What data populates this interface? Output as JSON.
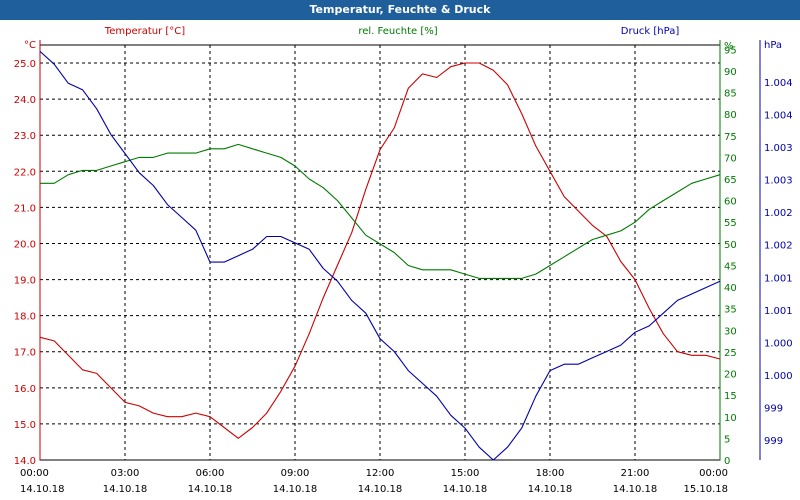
{
  "window": {
    "title": "Temperatur, Feuchte & Druck"
  },
  "colors": {
    "temperature": "#cc0000",
    "humidity": "#007a00",
    "pressure": "#0000aa",
    "grid": "#000000",
    "titlebar": "#1e5f9c"
  },
  "chart_data": {
    "type": "line",
    "title": "Temperatur, Feuchte & Druck",
    "grid": true,
    "x_ticks": [
      {
        "time": "00:00",
        "date": "14.10.18"
      },
      {
        "time": "03:00",
        "date": "14.10.18"
      },
      {
        "time": "06:00",
        "date": "14.10.18"
      },
      {
        "time": "09:00",
        "date": "14.10.18"
      },
      {
        "time": "12:00",
        "date": "14.10.18"
      },
      {
        "time": "15:00",
        "date": "14.10.18"
      },
      {
        "time": "18:00",
        "date": "14.10.18"
      },
      {
        "time": "21:00",
        "date": "14.10.18"
      },
      {
        "time": "00:00",
        "date": "15.10.18"
      }
    ],
    "axes": {
      "temperature": {
        "label": "Temperatur [°C]",
        "unit": "°C",
        "range": [
          14.0,
          25.5
        ],
        "ticks": [
          "14.0",
          "15.0",
          "16.0",
          "17.0",
          "18.0",
          "19.0",
          "20.0",
          "21.0",
          "22.0",
          "23.0",
          "24.0",
          "25.0"
        ]
      },
      "humidity": {
        "label": "rel. Feuchte [%]",
        "unit": "%",
        "range": [
          0,
          96
        ],
        "ticks": [
          "0",
          "5",
          "10",
          "15",
          "20",
          "25",
          "30",
          "35",
          "40",
          "45",
          "50",
          "55",
          "60",
          "65",
          "70",
          "75",
          "80",
          "85",
          "90",
          "95",
          "%"
        ]
      },
      "pressure": {
        "label": "Druck [hPa]",
        "unit": "hPa",
        "range": [
          998.5,
          1005.0
        ],
        "tick_labels": [
          "999",
          "999",
          "1.000",
          "1.000",
          "1.001",
          "1.001",
          "1.002",
          "1.002",
          "1.003",
          "1.003",
          "1.004",
          "1.004"
        ]
      }
    },
    "series": [
      {
        "name": "Temperatur [°C]",
        "x_hours": [
          0,
          0.5,
          1,
          1.5,
          2,
          2.5,
          3,
          3.5,
          4,
          4.5,
          5,
          5.5,
          6,
          6.5,
          7,
          7.5,
          8,
          8.5,
          9,
          9.5,
          10,
          10.5,
          11,
          11.5,
          12,
          12.5,
          13,
          13.5,
          14,
          14.5,
          15,
          15.5,
          16,
          16.5,
          17,
          17.5,
          18,
          18.5,
          19,
          19.5,
          20,
          20.5,
          21,
          21.5,
          22,
          22.5,
          23,
          23.5,
          24
        ],
        "values": [
          17.4,
          17.3,
          16.9,
          16.5,
          16.4,
          16.0,
          15.6,
          15.5,
          15.3,
          15.2,
          15.2,
          15.3,
          15.2,
          14.9,
          14.6,
          14.9,
          15.3,
          15.9,
          16.6,
          17.5,
          18.5,
          19.4,
          20.3,
          21.5,
          22.6,
          23.2,
          24.3,
          24.7,
          24.6,
          24.9,
          25.0,
          25.0,
          24.8,
          24.4,
          23.6,
          22.7,
          22.0,
          21.3,
          20.9,
          20.5,
          20.2,
          19.5,
          19.0,
          18.2,
          17.5,
          17.0,
          16.9,
          16.9,
          16.8
        ]
      },
      {
        "name": "rel. Feuchte [%]",
        "x_hours": [
          0,
          0.5,
          1,
          1.5,
          2,
          2.5,
          3,
          3.5,
          4,
          4.5,
          5,
          5.5,
          6,
          6.5,
          7,
          7.5,
          8,
          8.5,
          9,
          9.5,
          10,
          10.5,
          11,
          11.5,
          12,
          12.5,
          13,
          13.5,
          14,
          14.5,
          15,
          15.5,
          16,
          16.5,
          17,
          17.5,
          18,
          18.5,
          19,
          19.5,
          20,
          20.5,
          21,
          21.5,
          22,
          22.5,
          23,
          23.5,
          24
        ],
        "values": [
          64,
          64,
          66,
          67,
          67,
          68,
          69,
          70,
          70,
          71,
          71,
          71,
          72,
          72,
          73,
          72,
          71,
          70,
          68,
          65,
          63,
          60,
          56,
          52,
          50,
          48,
          45,
          44,
          44,
          44,
          43,
          42,
          42,
          42,
          42,
          43,
          45,
          47,
          49,
          51,
          52,
          53,
          55,
          58,
          60,
          62,
          64,
          65,
          66
        ]
      },
      {
        "name": "Druck [hPa]",
        "x_hours": [
          0,
          0.5,
          1,
          1.5,
          2,
          2.5,
          3,
          3.5,
          4,
          4.5,
          5,
          5.5,
          6,
          6.5,
          7,
          7.5,
          8,
          8.5,
          9,
          9.5,
          10,
          10.5,
          11,
          11.5,
          12,
          12.5,
          13,
          13.5,
          14,
          14.5,
          15,
          15.5,
          16,
          16.5,
          17,
          17.5,
          18,
          18.5,
          19,
          19.5,
          20,
          20.5,
          21,
          21.5,
          22,
          22.5,
          23,
          23.5,
          24
        ],
        "values": [
          1004.9,
          1004.7,
          1004.4,
          1004.3,
          1004.0,
          1003.6,
          1003.3,
          1003.0,
          1002.8,
          1002.5,
          1002.3,
          1002.1,
          1001.6,
          1001.6,
          1001.7,
          1001.8,
          1002.0,
          1002.0,
          1001.9,
          1001.8,
          1001.5,
          1001.3,
          1001.0,
          1000.8,
          1000.4,
          1000.2,
          999.9,
          999.7,
          999.5,
          999.2,
          999.0,
          998.7,
          998.5,
          998.7,
          999.0,
          999.5,
          999.9,
          1000.0,
          1000.0,
          1000.1,
          1000.2,
          1000.3,
          1000.5,
          1000.6,
          1000.8,
          1001.0,
          1001.1,
          1001.2,
          1001.3
        ]
      }
    ]
  }
}
